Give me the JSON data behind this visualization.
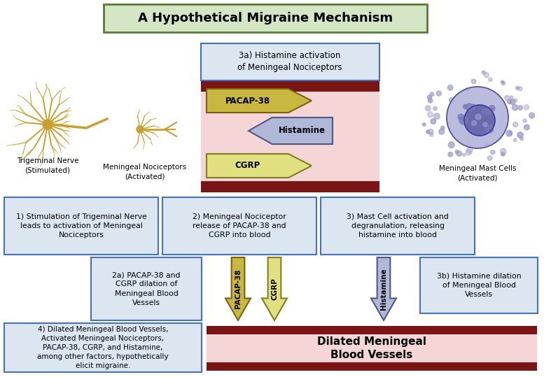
{
  "title": "A Hypothetical Migraine Mechanism",
  "title_bg": "#d4e6c3",
  "title_border": "#5a7a3a",
  "bg_color": "#ffffff",
  "box1_text": "1) Stimulation of Trigeminal Nerve\nleads to activation of Meningeal\nNociceptors",
  "box2_text": "2) Meningeal Nociceptor\nrelease of PACAP-38 and\nCGRP into blood",
  "box3_text": "3) Mast Cell activation and\ndegranulation, releasing\nhistamine into blood",
  "box2a_text": "2a) PACAP-38 and\nCGRP dilation of\nMeningeal Blood\nVessels",
  "box3b_text": "3b) Histamine dilation\nof Meningeal Blood\nVessels",
  "box3a_text": "3a) Histamine activation\nof Meningeal Nociceptors",
  "box4_text": "4) Dilated Meningeal Blood Vessels,\nActivated Meningeal Nociceptors,\nPACAP-38, CGRP, and Histamine,\namong other factors, hypothetically\nelicit migraine.",
  "dilated_text": "Dilated Meningeal\nBlood Vessels",
  "trigeminal_label": "Trigeminal Nerve\n(Stimulated)",
  "nociceptor_label": "Meningeal Nociceptors\n(Activated)",
  "mast_label": "Meningeal Mast Cells\n(Activated)",
  "box_fill": "#dce6f1",
  "box_border": "#4472c4",
  "blood_vessel_dark": "#7a1515",
  "blood_vessel_light": "#f5d5d5",
  "pacap_arrow_fill": "#c8b840",
  "pacap_arrow_edge": "#806010",
  "cgrp_arrow_fill": "#e0e080",
  "cgrp_arrow_edge": "#808020",
  "histamine_arrow_fill": "#b0b8d8",
  "histamine_arrow_edge": "#505888",
  "nerve_color": "#c8a030",
  "mast_fill": "#b0b0d8",
  "mast_nucleus": "#6060a8",
  "mast_dot": "#9898c8"
}
